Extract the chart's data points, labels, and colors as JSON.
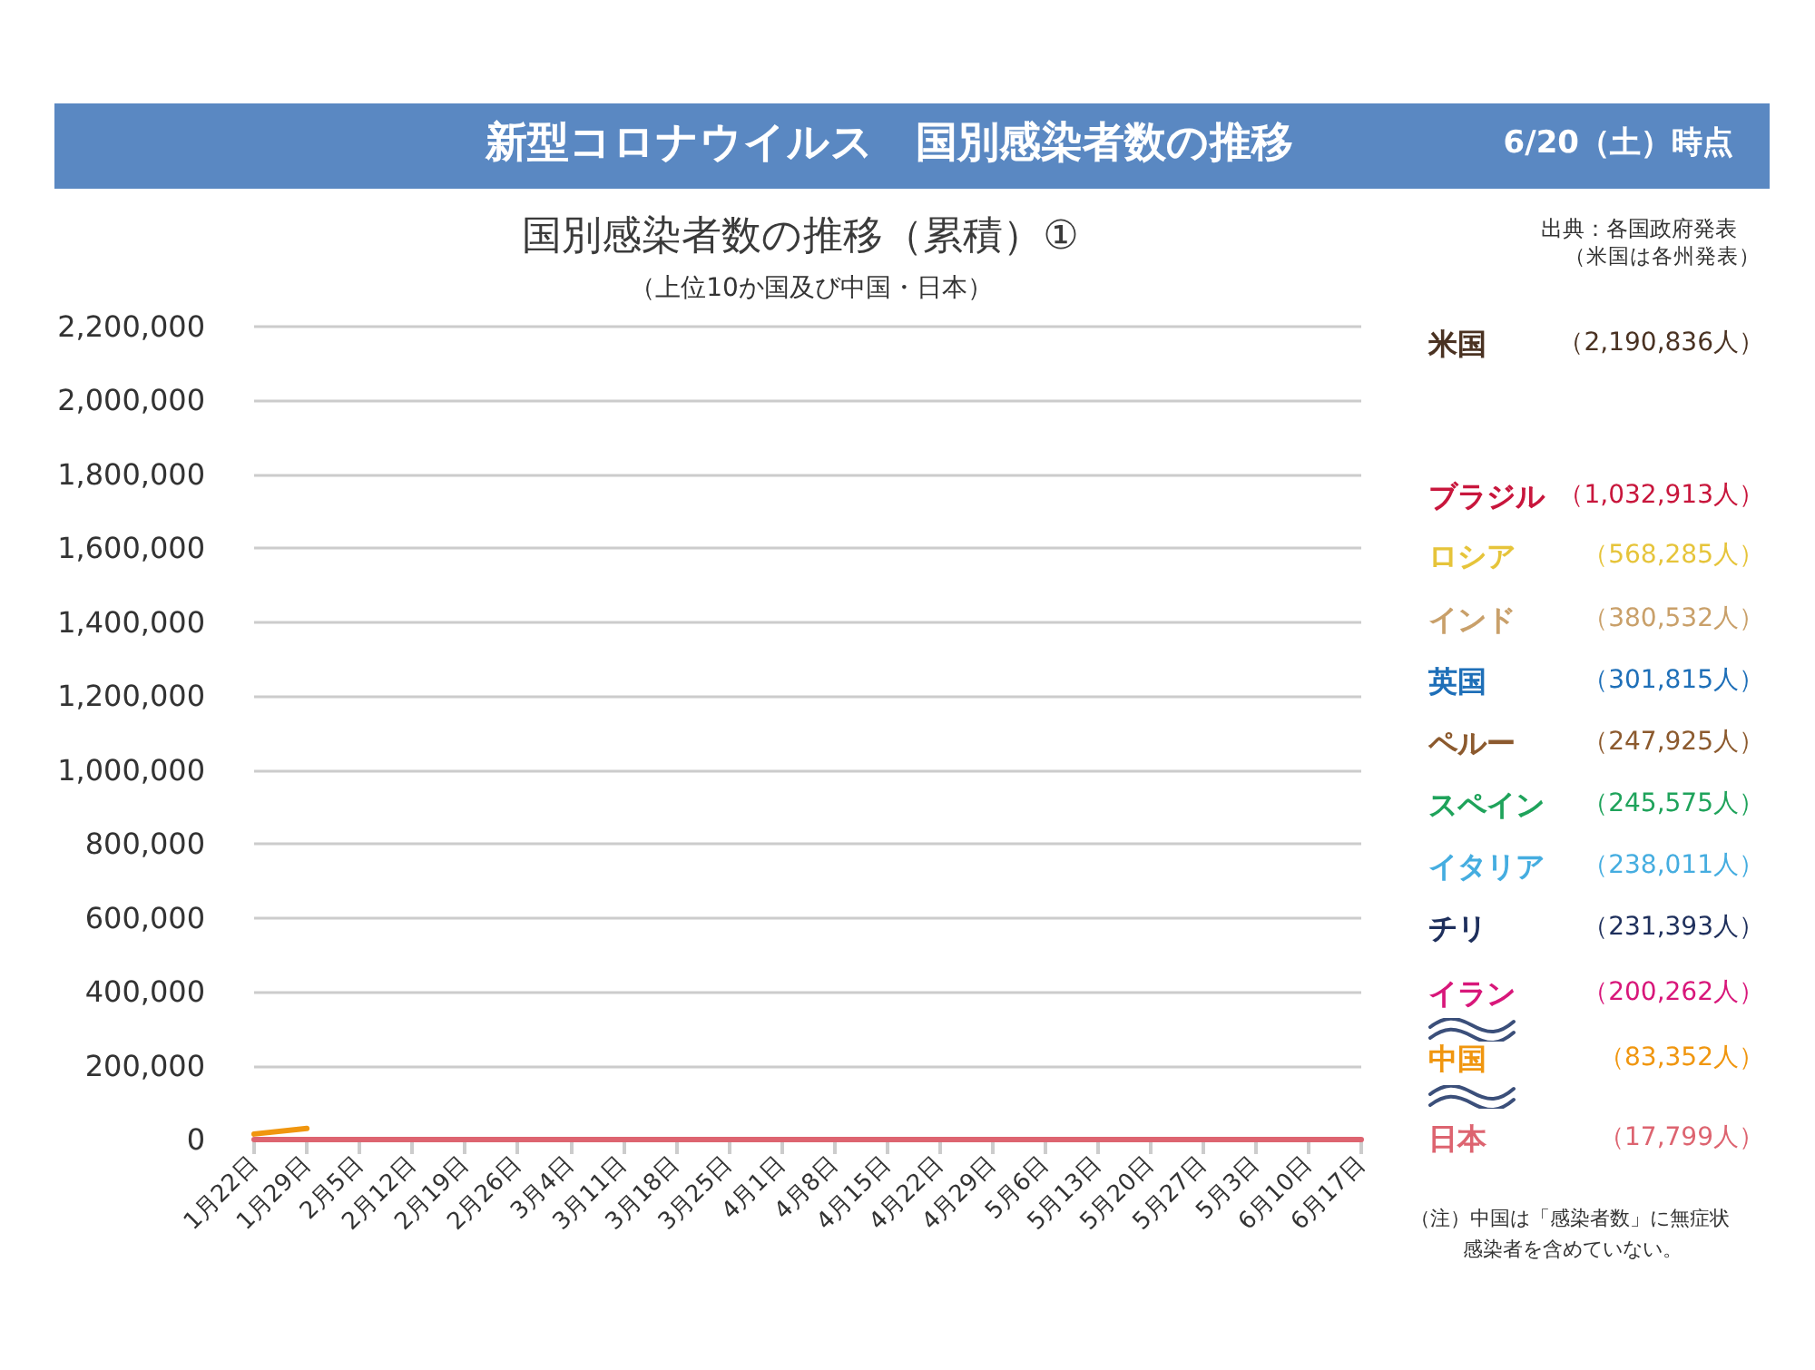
{
  "chart_data": {
    "type": "line",
    "title": "新型コロナウイルス　国別感染者数の推移",
    "subtitle": "国別感染者数の推移（累積）①",
    "annotations": [
      "6/20（土）時点",
      "（上位10か国及び中国・日本）",
      "出典：各国政府発表",
      "（米国は各州発表）",
      "（注）中国は「感染者数」に無症状",
      "感染者を含めていない。",
      "（2,190,836人）",
      "（1,032,913人）",
      "（568,285人）",
      "（380,532人）",
      "（301,815人）",
      "（247,925人）",
      "（245,575人）",
      "（238,011人）",
      "（231,393人）",
      "（200,262人）",
      "（83,352人）",
      "（17,799人）"
    ],
    "categories": [
      "1月22日",
      "1月29日",
      "2月5日",
      "2月12日",
      "2月19日",
      "2月26日",
      "3月4日",
      "3月11日",
      "3月18日",
      "3月25日",
      "4月1日",
      "4月8日",
      "4月15日",
      "4月22日",
      "4月29日",
      "5月6日",
      "5月13日",
      "5月20日",
      "5月27日",
      "5月3日",
      "6月10日",
      "6月17日"
    ],
    "series": [
      {
        "name": "米国",
        "color": "#4a3222",
        "values": [
          null,
          null,
          null,
          null,
          null,
          null,
          null,
          null,
          null,
          null,
          null,
          null,
          null,
          null,
          null,
          null,
          null,
          null,
          null,
          null,
          null,
          null
        ]
      },
      {
        "name": "ブラジル",
        "color": "#c8163c",
        "values": [
          null,
          null,
          null,
          null,
          null,
          null,
          null,
          null,
          null,
          null,
          null,
          null,
          null,
          null,
          null,
          null,
          null,
          null,
          null,
          null,
          null,
          null
        ]
      },
      {
        "name": "ロシア",
        "color": "#e6c43a",
        "values": [
          null,
          null,
          null,
          null,
          null,
          null,
          null,
          null,
          null,
          null,
          null,
          null,
          null,
          null,
          null,
          null,
          null,
          null,
          null,
          null,
          null,
          null
        ]
      },
      {
        "name": "インド",
        "color": "#c9a06a",
        "values": [
          null,
          null,
          null,
          null,
          null,
          null,
          null,
          null,
          null,
          null,
          null,
          null,
          null,
          null,
          null,
          null,
          null,
          null,
          null,
          null,
          null,
          null
        ]
      },
      {
        "name": "英国",
        "color": "#1e6fb8",
        "values": [
          null,
          null,
          null,
          null,
          null,
          null,
          null,
          null,
          null,
          null,
          null,
          null,
          null,
          null,
          null,
          null,
          null,
          null,
          null,
          null,
          null,
          null
        ]
      },
      {
        "name": "ペルー",
        "color": "#8c5a2e",
        "values": [
          null,
          null,
          null,
          null,
          null,
          null,
          null,
          null,
          null,
          null,
          null,
          null,
          null,
          null,
          null,
          null,
          null,
          null,
          null,
          null,
          null,
          null
        ]
      },
      {
        "name": "スペイン",
        "color": "#1fa35b",
        "values": [
          null,
          null,
          null,
          null,
          null,
          null,
          null,
          null,
          null,
          null,
          null,
          null,
          null,
          null,
          null,
          null,
          null,
          null,
          null,
          null,
          null,
          null
        ]
      },
      {
        "name": "イタリア",
        "color": "#45ade0",
        "values": [
          null,
          null,
          null,
          null,
          null,
          null,
          null,
          null,
          null,
          null,
          null,
          null,
          null,
          null,
          null,
          null,
          null,
          null,
          null,
          null,
          null,
          null
        ]
      },
      {
        "name": "チリ",
        "color": "#1e2f5c",
        "values": [
          null,
          null,
          null,
          null,
          null,
          null,
          null,
          null,
          null,
          null,
          null,
          null,
          null,
          null,
          null,
          null,
          null,
          null,
          null,
          null,
          null,
          null
        ]
      },
      {
        "name": "イラン",
        "color": "#d8177a",
        "values": [
          null,
          null,
          null,
          null,
          null,
          null,
          null,
          null,
          null,
          null,
          null,
          null,
          null,
          null,
          null,
          null,
          null,
          null,
          null,
          null,
          null,
          null
        ]
      },
      {
        "name": "中国",
        "color": "#f0960f",
        "values": [
          15000,
          30000,
          null,
          null,
          null,
          null,
          null,
          null,
          null,
          null,
          null,
          null,
          null,
          null,
          null,
          null,
          null,
          null,
          null,
          null,
          null,
          null
        ]
      },
      {
        "name": "日本",
        "color": "#dd6470",
        "values": [
          0,
          0,
          0,
          0,
          0,
          0,
          0,
          0,
          0,
          0,
          0,
          0,
          0,
          0,
          0,
          0,
          0,
          0,
          0,
          0,
          0,
          0
        ]
      }
    ],
    "ylim": [
      0,
      2200000
    ],
    "yticks": [
      {
        "value": 0,
        "label": "0"
      },
      {
        "value": 200000,
        "label": "200,000"
      },
      {
        "value": 400000,
        "label": "400,000"
      },
      {
        "value": 600000,
        "label": "600,000"
      },
      {
        "value": 800000,
        "label": "800,000"
      },
      {
        "value": 1000000,
        "label": "1,000,000"
      },
      {
        "value": 1200000,
        "label": "1,200,000"
      },
      {
        "value": 1400000,
        "label": "1,400,000"
      },
      {
        "value": 1600000,
        "label": "1,600,000"
      },
      {
        "value": 1800000,
        "label": "1,800,000"
      },
      {
        "value": 2000000,
        "label": "2,000,000"
      },
      {
        "value": 2200000,
        "label": "2,200,000"
      }
    ],
    "grid": "y",
    "legend": "right",
    "marker": "none",
    "line_style": "solid"
  }
}
